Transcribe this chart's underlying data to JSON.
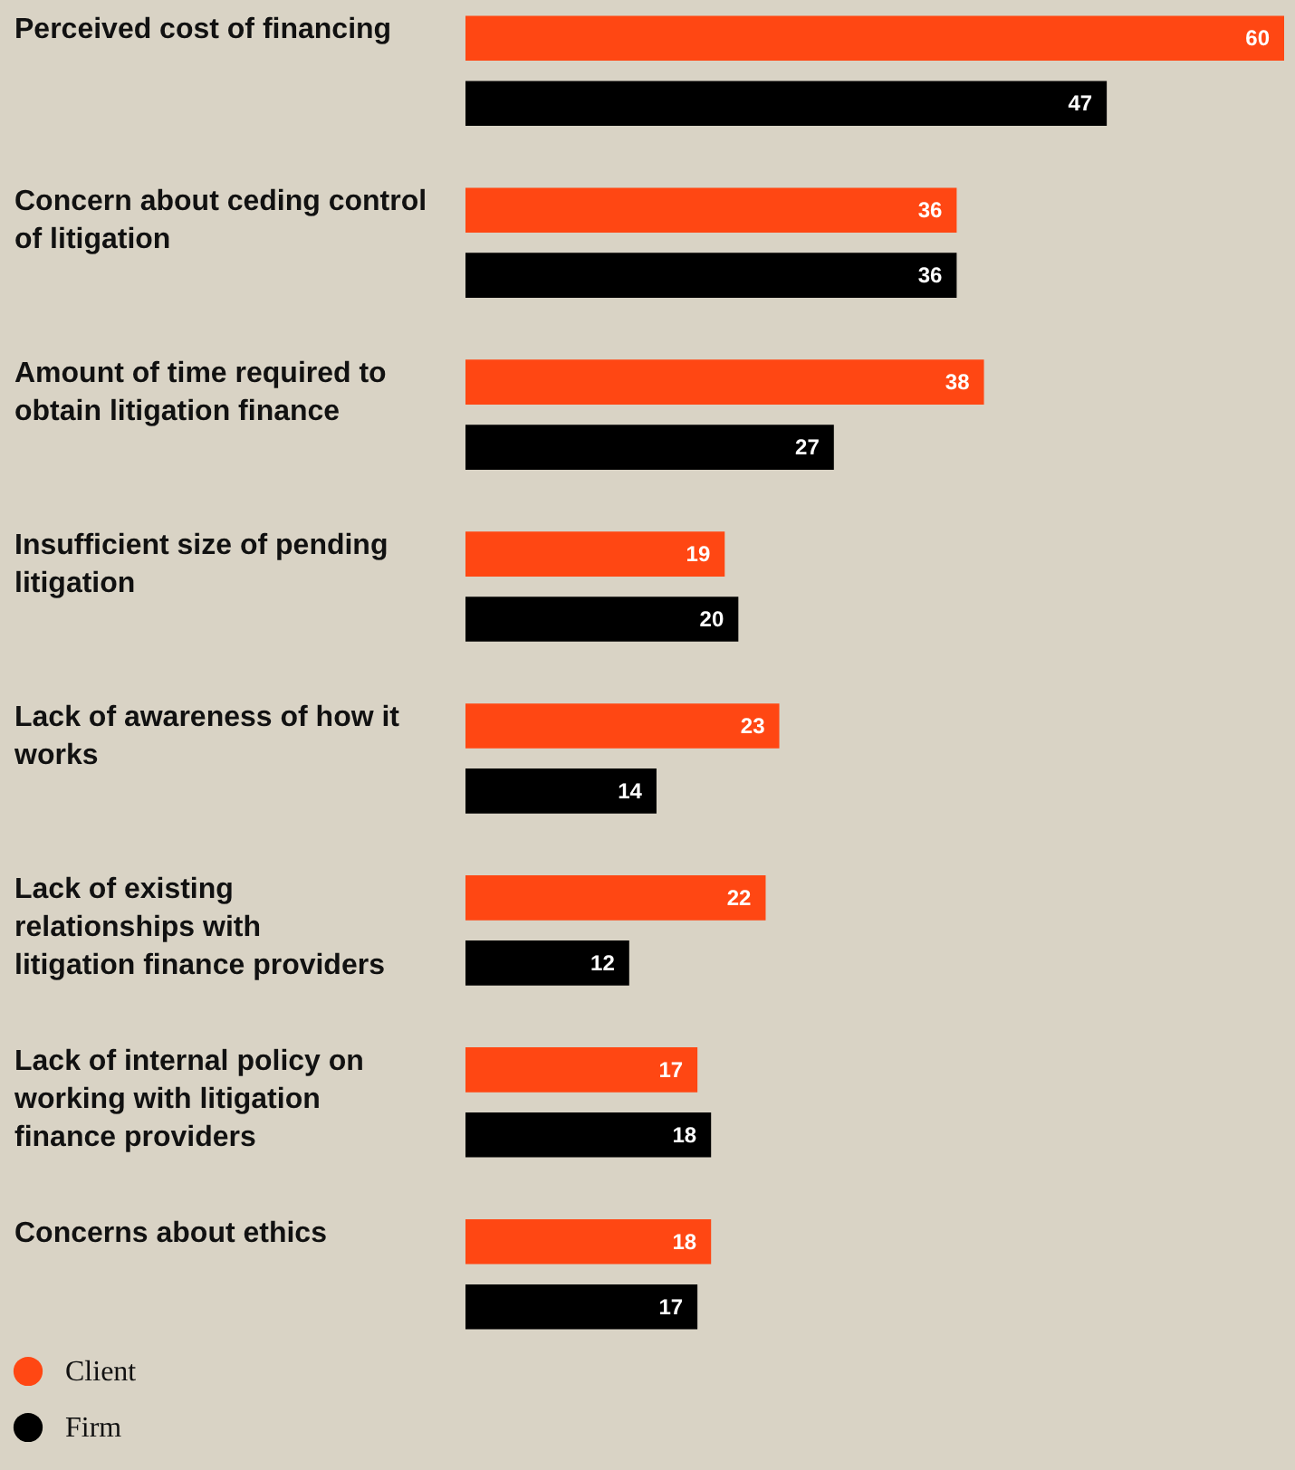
{
  "chart_data": {
    "type": "bar",
    "orientation": "horizontal",
    "data_labels": true,
    "legend": "bottom left",
    "categories": [
      "Perceived cost of financing",
      "Concern about ceding control of litigation",
      "Amount of time required to obtain litigation finance",
      "Insufficient size of pending litigation",
      "Lack of awareness of how it works",
      "Lack of existing relationships with litigation finance providers",
      "Lack of internal policy on working with litigation finance providers",
      "Concerns about ethics"
    ],
    "series": [
      {
        "name": "Client",
        "color": "#ff4713",
        "values": [
          60,
          36,
          38,
          19,
          23,
          22,
          17,
          18
        ]
      },
      {
        "name": "Firm",
        "color": "#000000",
        "values": [
          47,
          36,
          27,
          20,
          14,
          12,
          18,
          17
        ]
      }
    ]
  }
}
